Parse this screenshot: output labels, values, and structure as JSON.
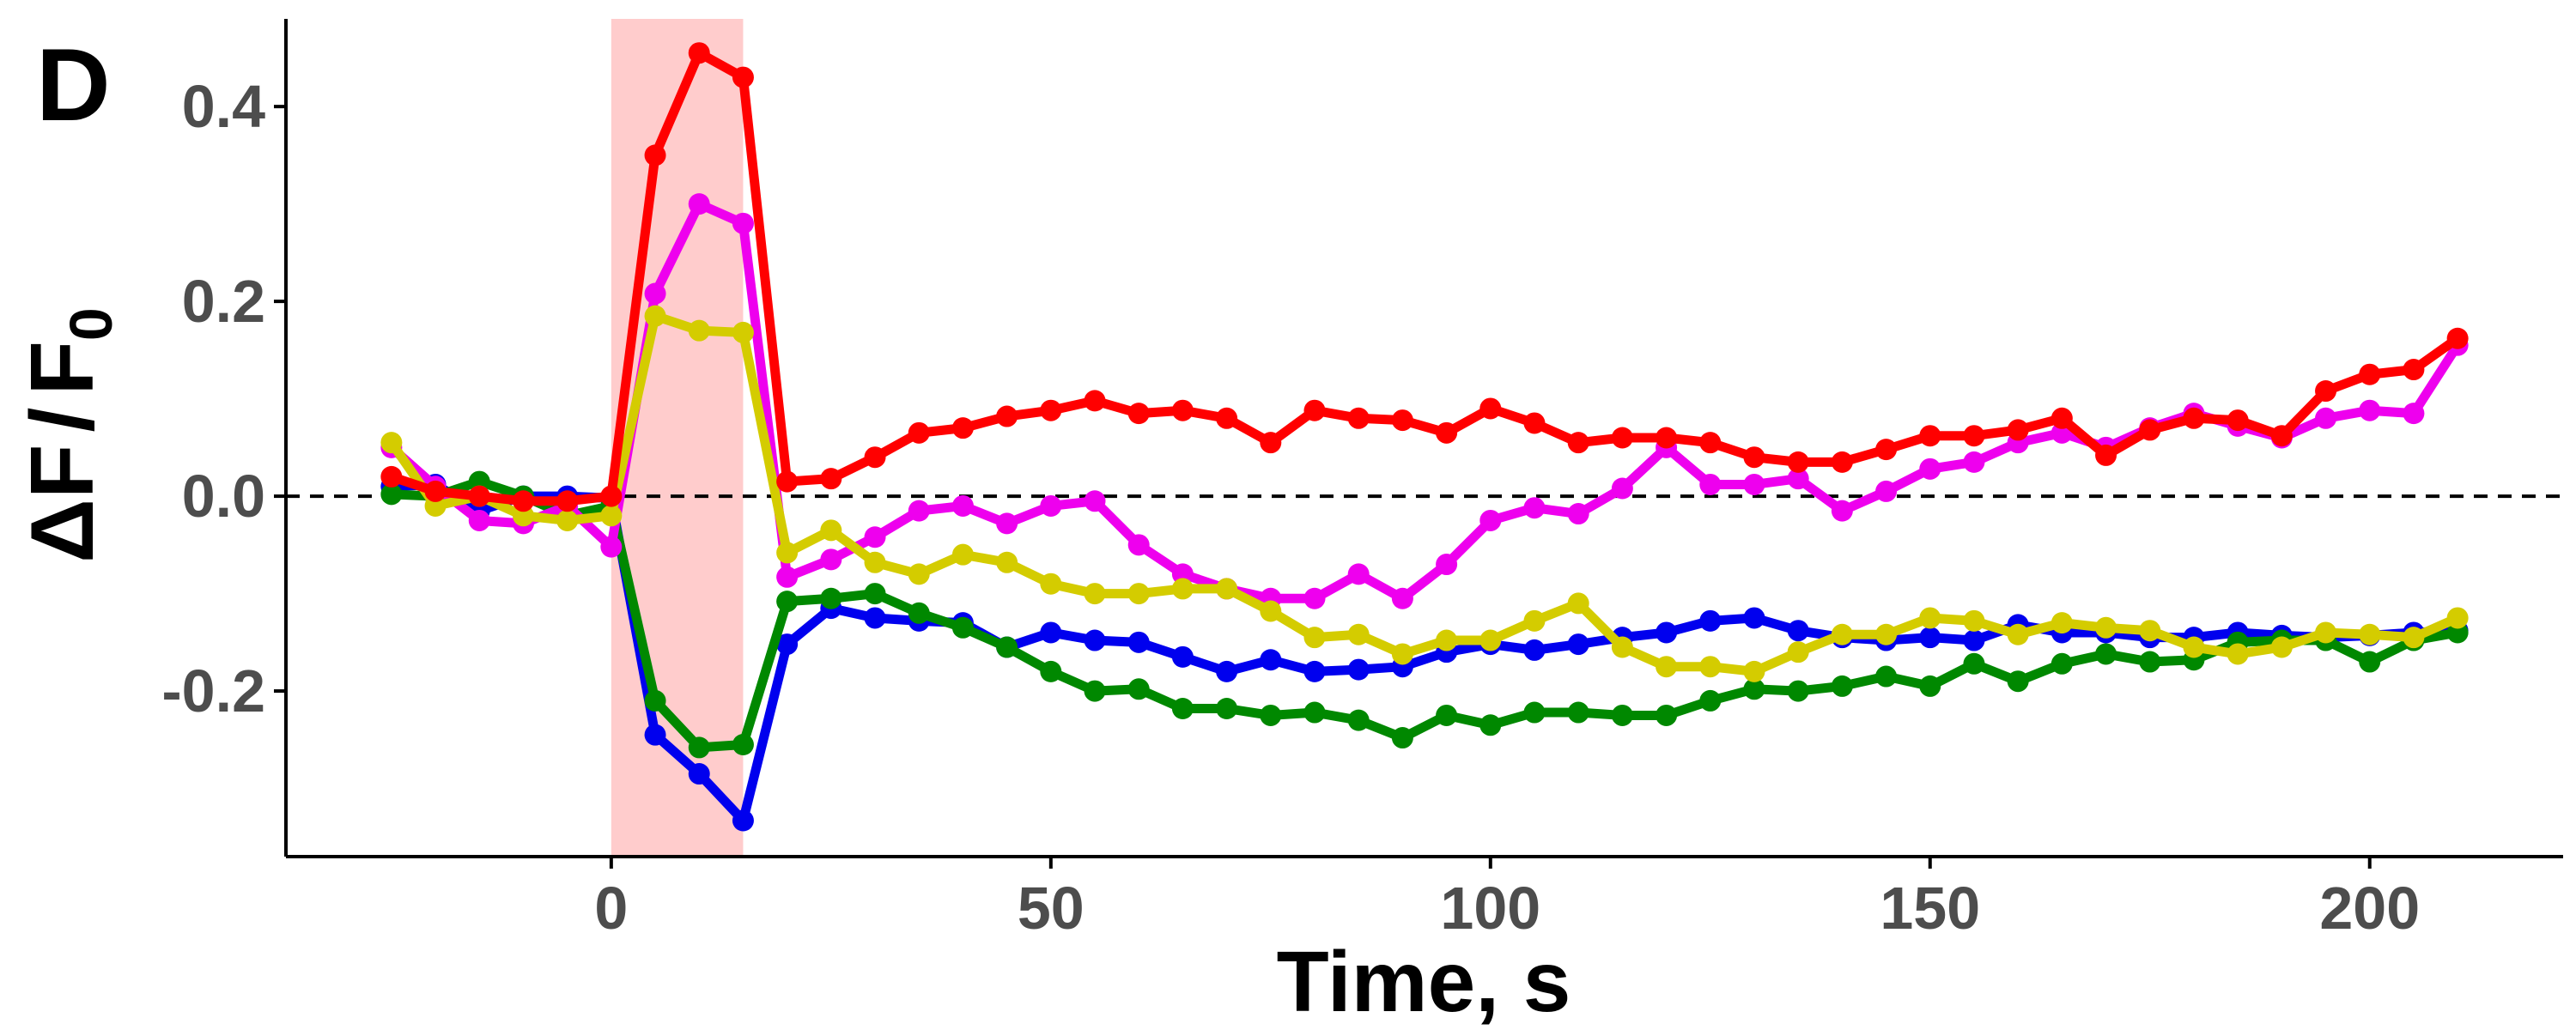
{
  "chart_data": {
    "type": "line",
    "panel_label": "D",
    "xlabel": "Time, s",
    "ylabel": {
      "delta_f": "ΔF",
      "slash": "/",
      "f": "F",
      "sub": "0"
    },
    "xlim": [
      -37,
      222
    ],
    "ylim": [
      -0.37,
      0.49
    ],
    "x_ticks": [
      0,
      50,
      100,
      150,
      200
    ],
    "x_tick_labels": [
      "0",
      "50",
      "100",
      "150",
      "200"
    ],
    "y_ticks": [
      -0.2,
      0.0,
      0.2,
      0.4
    ],
    "y_tick_labels": [
      "-0.2",
      "0.0",
      "0.2",
      "0.4"
    ],
    "grid": false,
    "reference_line": {
      "y": 0,
      "style": "dashed",
      "color": "#000000"
    },
    "highlight_band": {
      "x0": 0,
      "x1": 15,
      "color": "#ffcccc"
    },
    "x": [
      -25,
      -20,
      -15,
      -10,
      -5,
      0,
      5,
      10,
      15,
      20,
      25,
      30,
      35,
      40,
      45,
      50,
      55,
      60,
      65,
      70,
      75,
      80,
      85,
      90,
      95,
      100,
      105,
      110,
      115,
      120,
      125,
      130,
      135,
      140,
      145,
      150,
      155,
      160,
      165,
      170,
      175,
      180,
      185,
      190,
      195,
      200,
      205,
      210
    ],
    "series": [
      {
        "color": "#0000ee",
        "values": [
          0.01,
          0.012,
          -0.015,
          0.0,
          0.0,
          -0.002,
          -0.245,
          -0.285,
          -0.333,
          -0.152,
          -0.115,
          -0.125,
          -0.128,
          -0.13,
          -0.155,
          -0.14,
          -0.148,
          -0.15,
          -0.165,
          -0.18,
          -0.168,
          -0.18,
          -0.178,
          -0.175,
          -0.16,
          -0.152,
          -0.158,
          -0.152,
          -0.145,
          -0.14,
          -0.128,
          -0.125,
          -0.138,
          -0.145,
          -0.148,
          -0.145,
          -0.148,
          -0.132,
          -0.14,
          -0.14,
          -0.145,
          -0.145,
          -0.14,
          -0.143,
          -0.145,
          -0.143,
          -0.14,
          -0.138
        ]
      },
      {
        "color": "#008800",
        "values": [
          0.002,
          0.0,
          0.015,
          0.0,
          -0.02,
          -0.01,
          -0.21,
          -0.258,
          -0.255,
          -0.108,
          -0.105,
          -0.1,
          -0.12,
          -0.135,
          -0.155,
          -0.18,
          -0.2,
          -0.198,
          -0.218,
          -0.218,
          -0.225,
          -0.222,
          -0.23,
          -0.248,
          -0.225,
          -0.235,
          -0.222,
          -0.222,
          -0.225,
          -0.225,
          -0.21,
          -0.198,
          -0.2,
          -0.195,
          -0.185,
          -0.195,
          -0.172,
          -0.19,
          -0.172,
          -0.162,
          -0.17,
          -0.168,
          -0.15,
          -0.148,
          -0.148,
          -0.17,
          -0.148,
          -0.14
        ]
      },
      {
        "color": "#ee00ee",
        "values": [
          0.05,
          0.01,
          -0.025,
          -0.028,
          -0.01,
          -0.052,
          0.208,
          0.3,
          0.28,
          -0.083,
          -0.065,
          -0.042,
          -0.015,
          -0.01,
          -0.028,
          -0.01,
          -0.005,
          -0.05,
          -0.08,
          -0.095,
          -0.105,
          -0.105,
          -0.08,
          -0.105,
          -0.07,
          -0.025,
          -0.012,
          -0.018,
          0.008,
          0.05,
          0.012,
          0.012,
          0.018,
          -0.015,
          0.005,
          0.028,
          0.035,
          0.055,
          0.065,
          0.05,
          0.07,
          0.085,
          0.072,
          0.06,
          0.08,
          0.088,
          0.085,
          0.155
        ]
      },
      {
        "color": "#d4cc00",
        "values": [
          0.055,
          -0.01,
          0.0,
          -0.02,
          -0.025,
          -0.02,
          0.185,
          0.17,
          0.168,
          -0.058,
          -0.035,
          -0.068,
          -0.08,
          -0.06,
          -0.068,
          -0.09,
          -0.1,
          -0.1,
          -0.095,
          -0.095,
          -0.118,
          -0.145,
          -0.142,
          -0.162,
          -0.148,
          -0.148,
          -0.128,
          -0.11,
          -0.155,
          -0.175,
          -0.175,
          -0.18,
          -0.16,
          -0.142,
          -0.142,
          -0.125,
          -0.128,
          -0.142,
          -0.13,
          -0.135,
          -0.138,
          -0.155,
          -0.162,
          -0.155,
          -0.14,
          -0.142,
          -0.145,
          -0.125
        ]
      },
      {
        "color": "#ff0000",
        "values": [
          0.02,
          0.005,
          0.0,
          -0.005,
          -0.005,
          0.0,
          0.35,
          0.455,
          0.43,
          0.015,
          0.018,
          0.04,
          0.065,
          0.07,
          0.082,
          0.088,
          0.098,
          0.085,
          0.088,
          0.08,
          0.055,
          0.088,
          0.08,
          0.078,
          0.065,
          0.09,
          0.075,
          0.055,
          0.06,
          0.06,
          0.055,
          0.04,
          0.035,
          0.035,
          0.048,
          0.062,
          0.062,
          0.068,
          0.08,
          0.042,
          0.068,
          0.08,
          0.078,
          0.062,
          0.108,
          0.125,
          0.13,
          0.162
        ]
      }
    ]
  }
}
